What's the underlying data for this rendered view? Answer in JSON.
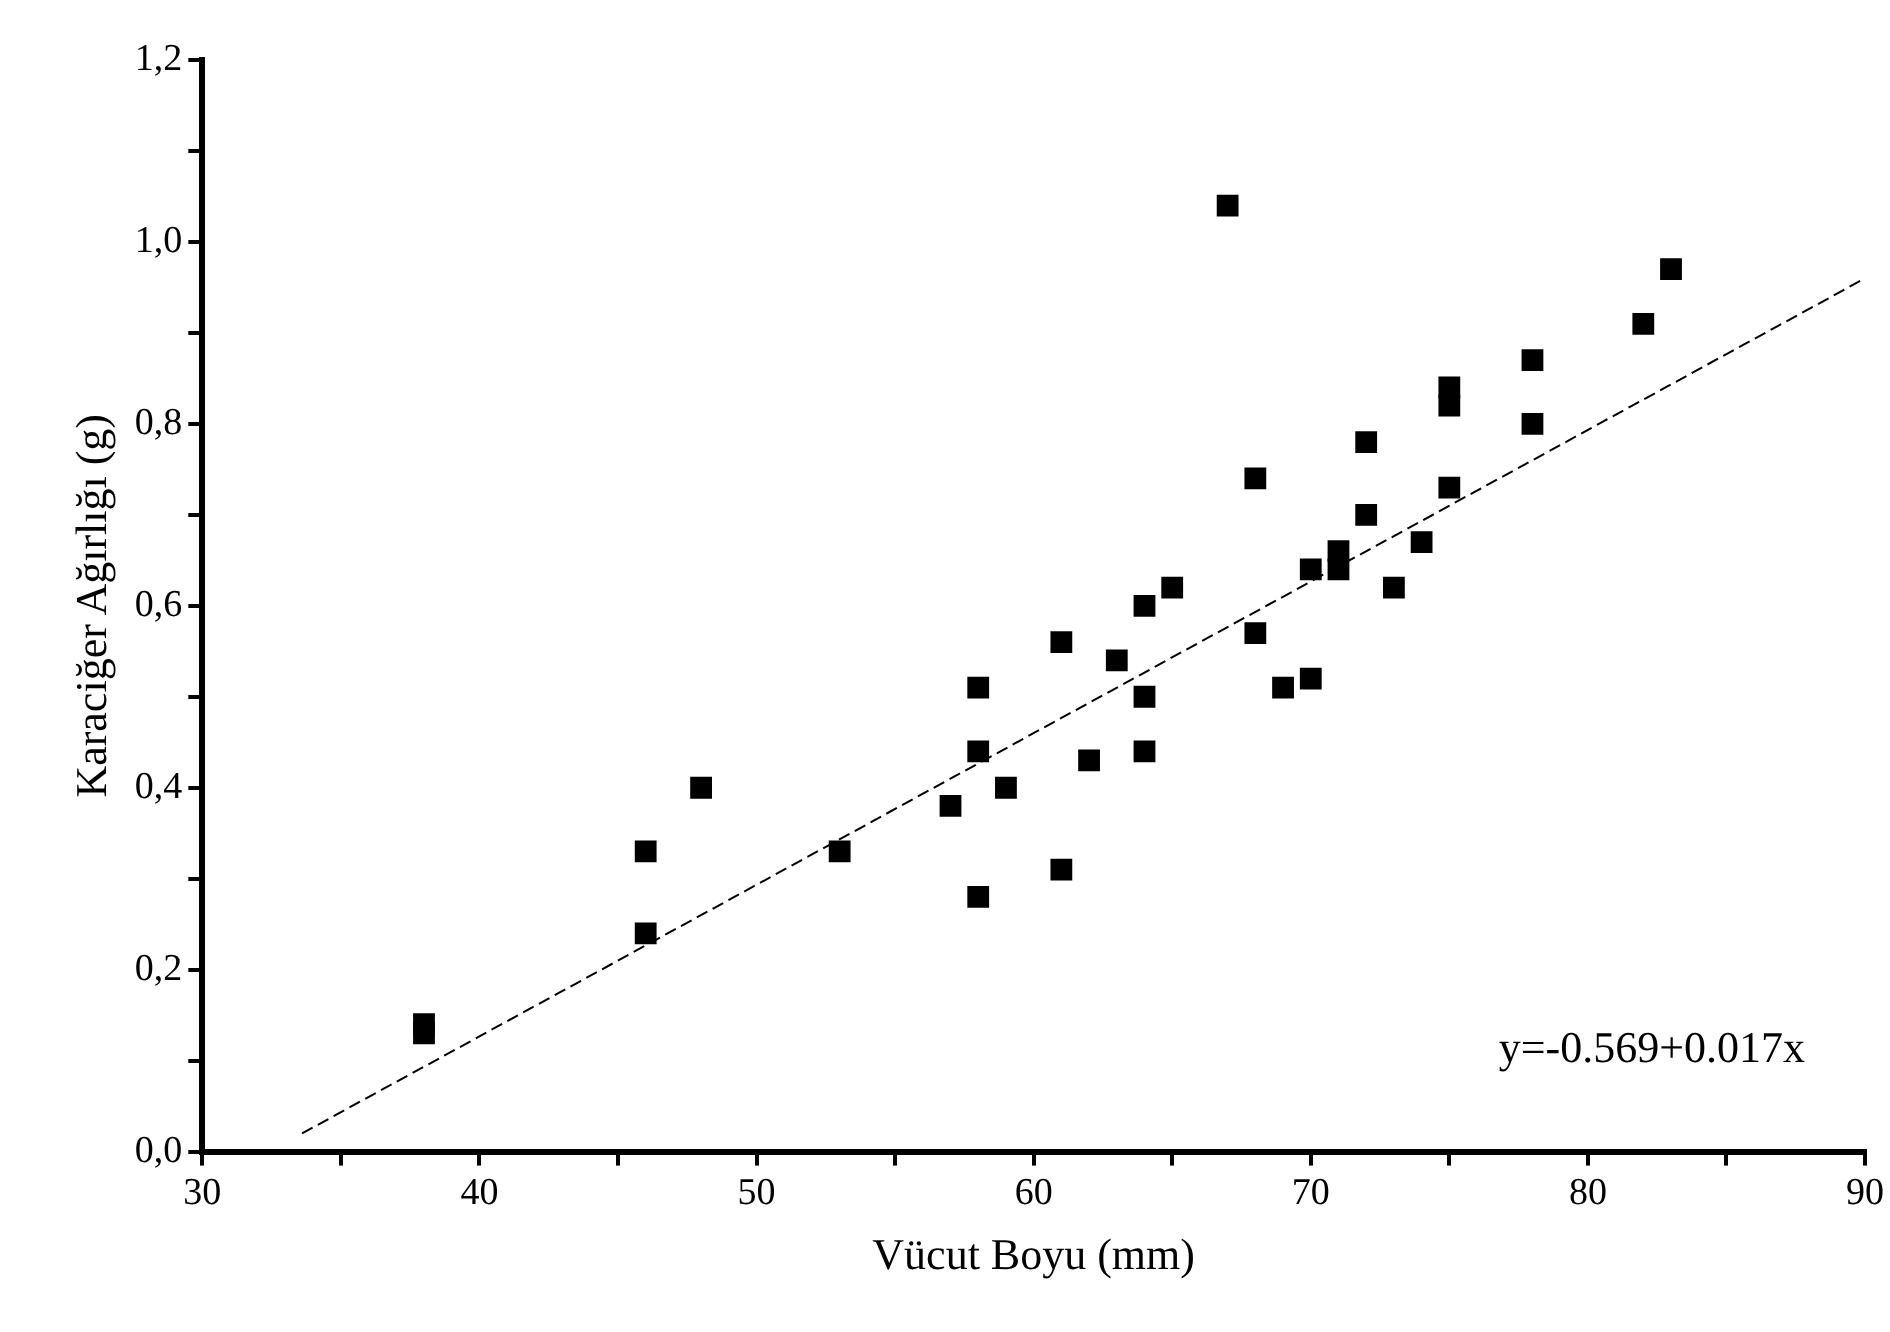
{
  "chart_data": {
    "type": "scatter",
    "xlabel": "Vücut Boyu (mm)",
    "ylabel": "Karaciğer Ağırlığı (g)",
    "annotations": [
      "y=-0.569+0.017x"
    ],
    "xlim": [
      30,
      90
    ],
    "xticks": [
      30,
      {
        "value": 35,
        "label": null
      },
      40,
      {
        "value": 45,
        "label": null
      },
      50,
      {
        "value": 55,
        "label": null
      },
      60,
      {
        "value": 65,
        "label": null
      },
      70,
      {
        "value": 75,
        "label": null
      },
      80,
      {
        "value": 85,
        "label": null
      },
      90
    ],
    "ylim": [
      0,
      1.2
    ],
    "yticks": [
      {
        "value": 0,
        "label": "0,0"
      },
      {
        "value": 0.1,
        "label": null
      },
      {
        "value": 0.2,
        "label": "0,2"
      },
      {
        "value": 0.3,
        "label": null
      },
      {
        "value": 0.4,
        "label": "0,4"
      },
      {
        "value": 0.5,
        "label": null
      },
      {
        "value": 0.6,
        "label": "0,6"
      },
      {
        "value": 0.7,
        "label": null
      },
      {
        "value": 0.8,
        "label": "0,8"
      },
      {
        "value": 0.9,
        "label": null
      },
      {
        "value": 1.0,
        "label": "1,0"
      },
      {
        "value": 1.1,
        "label": null
      },
      {
        "value": 1.2,
        "label": "1,2"
      }
    ],
    "grid": false,
    "legend": false,
    "marker": "square",
    "series": [
      {
        "color": "#000000",
        "x": [
          38,
          38,
          46,
          46,
          48,
          53,
          57,
          58,
          58,
          58,
          59,
          61,
          61,
          62,
          63,
          64,
          64,
          64,
          65,
          67,
          68,
          68,
          69,
          70,
          70,
          71,
          71,
          72,
          72,
          73,
          74,
          75,
          75,
          75,
          78,
          78,
          82,
          83
        ],
        "values": [
          0.14,
          0.13,
          0.33,
          0.24,
          0.4,
          0.33,
          0.38,
          0.51,
          0.44,
          0.28,
          0.4,
          0.56,
          0.31,
          0.43,
          0.54,
          0.6,
          0.5,
          0.44,
          0.62,
          1.04,
          0.74,
          0.57,
          0.51,
          0.64,
          0.52,
          0.66,
          0.64,
          0.78,
          0.7,
          0.62,
          0.67,
          0.84,
          0.82,
          0.73,
          0.87,
          0.8,
          0.91,
          0.97
        ]
      },
      {
        "type": "line",
        "color": "#000000",
        "marker": "none",
        "line_style": "dashed",
        "x": [
          33.6,
          90
        ],
        "values": [
          0.02,
          0.96
        ]
      }
    ]
  }
}
